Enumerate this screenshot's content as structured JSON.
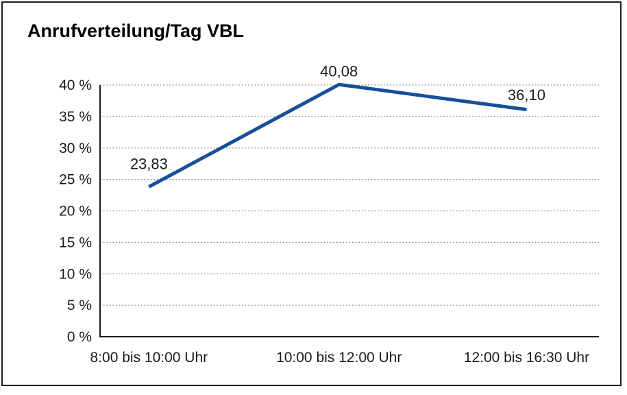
{
  "window": {
    "background": "#ffffff",
    "frame_border_color": "#1c1c1c"
  },
  "chart_data": {
    "type": "line",
    "title": "Anrufverteilung/Tag VBL",
    "categories": [
      "8:00 bis 10:00 Uhr",
      "10:00 bis 12:00 Uhr",
      "12:00 bis 16:30 Uhr"
    ],
    "series": [
      {
        "name": "Anrufverteilung",
        "values": [
          23.83,
          40.08,
          36.1
        ],
        "value_labels": [
          "23,83",
          "40,08",
          "36,10"
        ]
      }
    ],
    "xlabel": "",
    "ylabel": "",
    "ylim": [
      0,
      40
    ],
    "ytick_step": 5,
    "ytick_labels": [
      "0 %",
      "5 %",
      "10 %",
      "15 %",
      "20 %",
      "25 %",
      "30 %",
      "35 %",
      "40 %"
    ],
    "grid": "horizontal dotted gridlines at every 5%",
    "legend": "none",
    "markers": "none",
    "colors": {
      "line": "#17509a",
      "axis": "#1a1a1a",
      "gridline": "#8b8b8b",
      "text": "#1a1a1a",
      "title": "#000000"
    }
  }
}
